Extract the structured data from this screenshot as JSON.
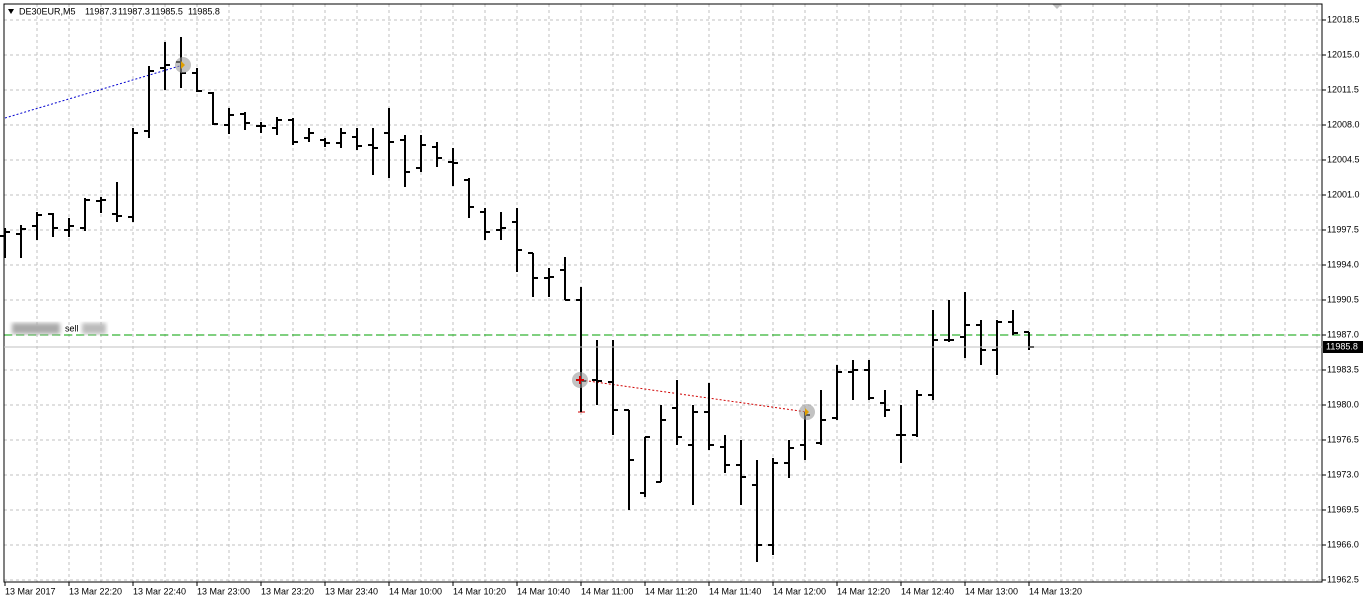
{
  "chart_data": {
    "type": "ohlc",
    "title": "DE30EUR,M5",
    "trade_label": "sell",
    "color": "#000000",
    "grid": true,
    "categories": [
      "13 Mar 2017",
      null,
      null,
      null,
      "13 Mar 22:20",
      null,
      null,
      null,
      "13 Mar 22:40",
      null,
      null,
      null,
      "13 Mar 23:00",
      null,
      null,
      null,
      "13 Mar 23:20",
      null,
      null,
      null,
      "13 Mar 23:40",
      null,
      null,
      null,
      "14 Mar 10:00",
      null,
      null,
      null,
      "14 Mar 10:20",
      null,
      null,
      null,
      "14 Mar 10:40",
      null,
      null,
      null,
      "14 Mar 11:00",
      null,
      null,
      null,
      "14 Mar 11:20",
      null,
      null,
      null,
      "14 Mar 11:40",
      null,
      null,
      null,
      "14 Mar 12:00",
      null,
      null,
      null,
      "14 Mar 12:20",
      null,
      null,
      null,
      "14 Mar 12:40",
      null,
      null,
      null,
      "14 Mar 13:00",
      null,
      null,
      null,
      "14 Mar 13:20"
    ],
    "open": [
      11996.9,
      11997.1,
      11997.9,
      11999.1,
      11997.5,
      11997.7,
      12000.4,
      11999.1,
      11998.8,
      12007.4,
      12013.7,
      12014.3,
      12013.2,
      12011.2,
      12008.0,
      12009.1,
      12007.9,
      12007.7,
      12008.5,
      12006.7,
      12006.5,
      12006.2,
      12006.8,
      12006.0,
      12007.2,
      12006.5,
      12003.7,
      12005.8,
      12004.3,
      12002.5,
      11999.3,
      11997.5,
      11998.3,
      11995.2,
      11992.7,
      11993.5,
      11990.5,
      11982.5,
      11982.3,
      11979.5,
      11971.2,
      11972.3,
      11979.7,
      11976.0,
      11979.3,
      11975.8,
      11974.0,
      11972.0,
      11966.0,
      11974.2,
      11976.0,
      11976.2,
      11978.7,
      11983.3,
      11983.5,
      11980.2,
      11977.0,
      11977.0,
      11981.0,
      11986.5,
      11986.8,
      11988.0,
      11985.5,
      11988.3,
      11987.3
    ],
    "high": [
      11997.7,
      11998.0,
      11999.3,
      11999.2,
      11998.7,
      12000.7,
      12000.8,
      12002.3,
      12007.7,
      12013.9,
      12016.3,
      12016.8,
      12013.7,
      12011.3,
      12009.7,
      12009.3,
      12008.3,
      12008.8,
      12008.7,
      12007.7,
      12006.7,
      12007.7,
      12007.7,
      12007.7,
      12009.7,
      12007.0,
      12007.0,
      12006.3,
      12005.7,
      12002.7,
      11999.7,
      11999.3,
      11999.7,
      11995.2,
      11993.7,
      11994.8,
      11991.8,
      11986.5,
      11986.5,
      11979.5,
      11976.8,
      11980.0,
      11982.5,
      11980.0,
      11982.2,
      11977.0,
      11976.5,
      11974.5,
      11974.7,
      11976.5,
      11979.3,
      11981.5,
      11984.0,
      11984.5,
      11984.5,
      11981.5,
      11980.0,
      11981.5,
      11989.5,
      11990.5,
      11991.3,
      11988.5,
      11988.5,
      11989.5,
      11987.3
    ],
    "low": [
      11994.7,
      11994.7,
      11996.5,
      11996.8,
      11996.8,
      11997.4,
      11999.2,
      11998.3,
      11998.3,
      12006.7,
      12011.5,
      12011.7,
      12011.3,
      12008.0,
      12007.1,
      12007.5,
      12007.2,
      12007.0,
      12006.0,
      12006.3,
      12005.8,
      12005.7,
      12005.5,
      12003.0,
      12002.7,
      12001.8,
      12003.3,
      12003.8,
      12001.9,
      11998.7,
      11996.5,
      11996.5,
      11993.3,
      11990.8,
      11990.8,
      11990.5,
      11979.3,
      11980.0,
      11977.0,
      11969.5,
      11970.8,
      11972.3,
      11976.0,
      11970.0,
      11975.5,
      11973.2,
      11970.0,
      11964.3,
      11965.0,
      11972.7,
      11974.5,
      11976.0,
      11978.5,
      11980.5,
      11980.5,
      11978.8,
      11974.2,
      11976.8,
      11980.5,
      11986.3,
      11984.7,
      11984.0,
      11983.0,
      11987.0,
      11985.5
    ],
    "close": [
      11997.3,
      11997.6,
      11999.0,
      11997.7,
      11997.9,
      12000.5,
      12000.5,
      11998.9,
      12007.2,
      12013.4,
      12014.0,
      12013.2,
      12011.4,
      12008.1,
      12009.0,
      12008.2,
      12007.9,
      12008.5,
      12006.3,
      12007.2,
      12006.2,
      12007.2,
      12005.9,
      12005.7,
      12006.3,
      12003.3,
      12006.0,
      12004.7,
      12004.2,
      11999.8,
      11997.3,
      11997.7,
      11995.5,
      11992.7,
      11992.8,
      11990.5,
      11982.4,
      11982.4,
      11979.5,
      11974.5,
      11976.8,
      11978.5,
      11976.8,
      11979.3,
      11976.0,
      11974.0,
      11972.8,
      11966.0,
      11974.2,
      11975.7,
      11979.0,
      11978.5,
      11983.3,
      11983.5,
      11980.7,
      11979.5,
      11977.0,
      11981.0,
      11986.5,
      11986.5,
      11988.0,
      11985.5,
      11988.3,
      11987.2,
      11985.8
    ],
    "ylim": [
      11962.3,
      12020.1
    ],
    "yticks": [
      {
        "value": 11962.5,
        "label": "11962.5"
      },
      {
        "value": 11966,
        "label": "11966.0"
      },
      11969.5,
      {
        "value": 11973,
        "label": "11973.0"
      },
      11976.5,
      {
        "value": 11980,
        "label": "11980.0"
      },
      11983.5,
      {
        "value": 11987,
        "label": "11987.0"
      },
      11990.5,
      {
        "value": 11994,
        "label": "11994.0"
      },
      11997.5,
      {
        "value": 12001,
        "label": "12001.0"
      },
      12004.5,
      {
        "value": 12008,
        "label": "12008.0"
      },
      12011.5,
      {
        "value": 12015,
        "label": "12015.0"
      },
      12018.5
    ]
  }
}
